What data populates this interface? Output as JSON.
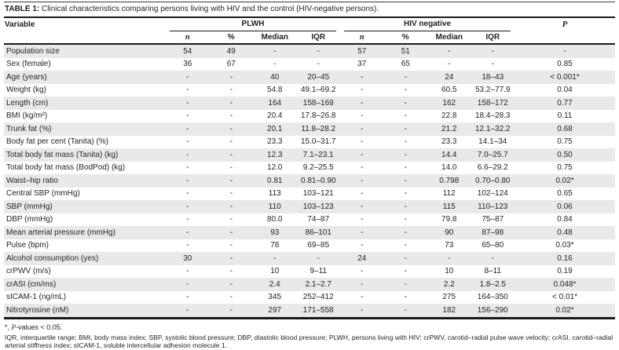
{
  "table": {
    "title_label": "TABLE 1:",
    "title_text": "Clinical characteristics comparing persons living with HIV and the control (HIV-negative persons).",
    "columns": {
      "variable": "Variable",
      "group1": "PLWH",
      "group2": "HIV negative",
      "p": "P",
      "sub": [
        "n",
        "%",
        "Median",
        "IQR"
      ]
    },
    "rows": [
      {
        "variable": "Population size",
        "cells": [
          "54",
          "49",
          "-",
          "-",
          "57",
          "51",
          "-",
          "-",
          "-"
        ]
      },
      {
        "variable": "Sex (female)",
        "cells": [
          "36",
          "67",
          "-",
          "-",
          "37",
          "65",
          "-",
          "-",
          "0.85"
        ]
      },
      {
        "variable": "Age (years)",
        "cells": [
          "-",
          "-",
          "40",
          "20–45",
          "-",
          "-",
          "24",
          "18–43",
          "< 0.001*"
        ]
      },
      {
        "variable": "Weight (kg)",
        "cells": [
          "-",
          "-",
          "54.8",
          "49.1–69.2",
          "-",
          "-",
          "60.5",
          "53.2–77.9",
          "0.04"
        ]
      },
      {
        "variable": "Length (cm)",
        "cells": [
          "-",
          "-",
          "164",
          "158–169",
          "-",
          "-",
          "162",
          "158–172",
          "0.77"
        ]
      },
      {
        "variable": "BMI (kg/m²)",
        "cells": [
          "-",
          "-",
          "20.4",
          "17.8–26.8",
          "-",
          "-",
          "22.8",
          "18.4–28.3",
          "0.11"
        ]
      },
      {
        "variable": "Trunk fat (%)",
        "cells": [
          "-",
          "-",
          "20.1",
          "11.8–28.2",
          "-",
          "-",
          "21.2",
          "12.1–32.2",
          "0.68"
        ]
      },
      {
        "variable": "Body fat per cent (Tanita) (%)",
        "cells": [
          "-",
          "-",
          "23.3",
          "15.0–31.7",
          "-",
          "-",
          "23.3",
          "14.1–34",
          "0.75"
        ]
      },
      {
        "variable": "Total body fat mass (Tanita) (kg)",
        "cells": [
          "-",
          "-",
          "12.3",
          "7.1–23.1",
          "-",
          "-",
          "14.4",
          "7.0–25.7",
          "0.50"
        ]
      },
      {
        "variable": "Total body fat mass (BodPod) (kg)",
        "cells": [
          "-",
          "-",
          "12.0",
          "9.2–25.5",
          "-",
          "-",
          "14.0",
          "6.6–29.2",
          "0.75"
        ]
      },
      {
        "variable": "Waist–hip ratio",
        "cells": [
          "-",
          "-",
          "0.81",
          "0.81–0.90",
          "-",
          "-",
          "0.798",
          "0.70–0.80",
          "0.02*"
        ]
      },
      {
        "variable": "Central SBP (mmHg)",
        "cells": [
          "-",
          "-",
          "113",
          "103–121",
          "-",
          "-",
          "112",
          "102–124",
          "0.65"
        ]
      },
      {
        "variable": "SBP (mmHg)",
        "cells": [
          "-",
          "-",
          "110",
          "103–123",
          "-",
          "-",
          "115",
          "110–123",
          "0.06"
        ]
      },
      {
        "variable": "DBP (mmHg)",
        "cells": [
          "-",
          "-",
          "80.0",
          "74–87",
          "-",
          "-",
          "79.8",
          "75–87",
          "0.84"
        ]
      },
      {
        "variable": "Mean arterial pressure (mmHg)",
        "cells": [
          "-",
          "-",
          "93",
          "86–101",
          "-",
          "-",
          "90",
          "87–98",
          "0.48"
        ]
      },
      {
        "variable": "Pulse (bpm)",
        "cells": [
          "-",
          "-",
          "78",
          "69–85",
          "-",
          "-",
          "73",
          "65–80",
          "0.03*"
        ]
      },
      {
        "variable": "Alcohol consumption (yes)",
        "cells": [
          "30",
          "-",
          "-",
          "-",
          "24",
          "-",
          "-",
          "-",
          "0.16"
        ]
      },
      {
        "variable": "crPWV (m/s)",
        "cells": [
          "-",
          "-",
          "10",
          "9–11",
          "-",
          "-",
          "10",
          "8–11",
          "0.19"
        ]
      },
      {
        "variable": "crASI (cm/ms)",
        "cells": [
          "-",
          "-",
          "2.4",
          "2.1–2.7",
          "-",
          "-",
          "2.2",
          "1.8–2.5",
          "0.048*"
        ]
      },
      {
        "variable": "sICAM-1 (ng/mL)",
        "cells": [
          "-",
          "-",
          "345",
          "252–412",
          "-",
          "-",
          "275",
          "164–350",
          "< 0.01*"
        ]
      },
      {
        "variable": "Nitrotyrosine (nM)",
        "cells": [
          "-",
          "-",
          "297",
          "171–558",
          "-",
          "-",
          "182",
          "156–290",
          "0.02*"
        ]
      }
    ],
    "footnotes": {
      "sig_prefix": "*, ",
      "sig_italic": "P",
      "sig_suffix": "-values < 0.05.",
      "abbreviations": "IQR, interquartile range; BMI, body mass index; SBP, systolic blood pressure; DBP, diastolic blood pressure; PLWH, persons living with HIV; crPWV, carotid–radial pulse wave velocity; crASI, carotid–radial arterial stiffness index; sICAM-1, soluble intercellular adhesion molecule 1."
    },
    "colors": {
      "stripe": "#e9e9e9",
      "text": "#231f20",
      "rule": "#1a1a1a"
    }
  }
}
